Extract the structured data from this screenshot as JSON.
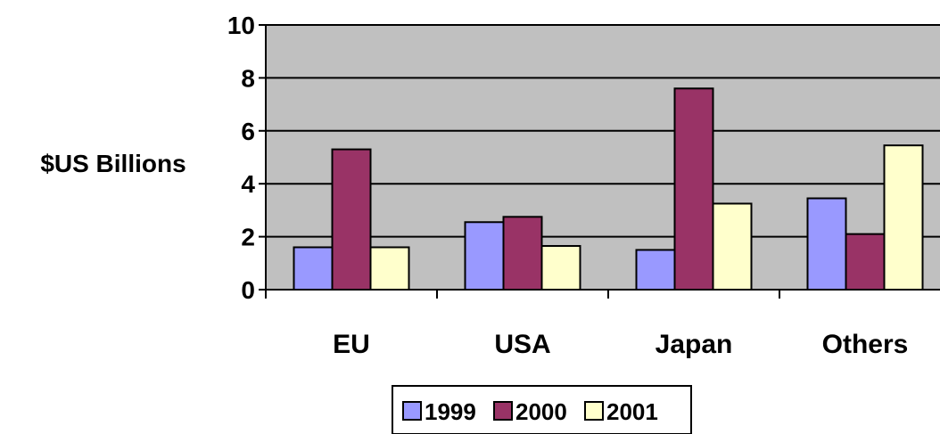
{
  "chart_data": {
    "type": "bar",
    "title": "",
    "xlabel": "",
    "ylabel": "$US Billions",
    "ylim": [
      0,
      10
    ],
    "yticks": [
      "0",
      "2",
      "4",
      "6",
      "8",
      "10"
    ],
    "categories": [
      "EU",
      "USA",
      "Japan",
      "Others"
    ],
    "series": [
      {
        "name": "1999",
        "color": "#9999ff",
        "values": [
          1.6,
          2.55,
          1.5,
          3.45
        ]
      },
      {
        "name": "2000",
        "color": "#993366",
        "values": [
          5.3,
          2.75,
          7.6,
          2.1
        ]
      },
      {
        "name": "2001",
        "color": "#ffffcc",
        "values": [
          1.6,
          1.65,
          3.25,
          5.45
        ]
      }
    ],
    "grid": true,
    "plot_background": "#c0c0c0",
    "legend_position": "bottom"
  }
}
